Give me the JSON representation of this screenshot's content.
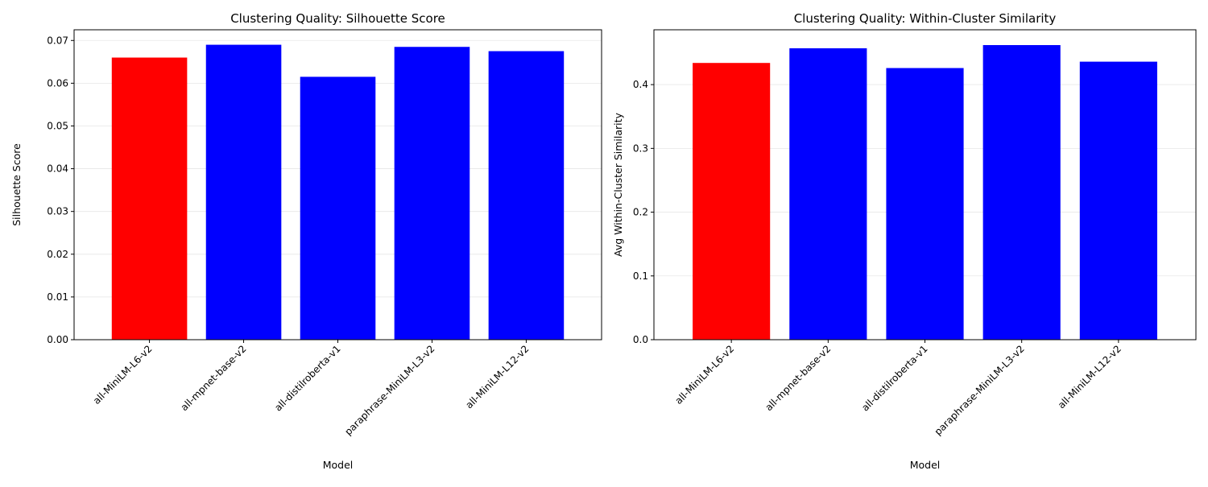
{
  "colors": {
    "highlight": "#ff0000",
    "bar": "#0000ff",
    "grid": "#e6e6e6",
    "axis": "#000000"
  },
  "chart_data": [
    {
      "type": "bar",
      "title": "Clustering Quality: Silhouette Score",
      "xlabel": "Model",
      "ylabel": "Silhouette Score",
      "categories": [
        "all-MiniLM-L6-v2",
        "all-mpnet-base-v2",
        "all-distilroberta-v1",
        "paraphrase-MiniLM-L3-v2",
        "all-MiniLM-L12-v2"
      ],
      "values": [
        0.066,
        0.069,
        0.0615,
        0.0685,
        0.0675
      ],
      "bar_colors": [
        "#ff0000",
        "#0000ff",
        "#0000ff",
        "#0000ff",
        "#0000ff"
      ],
      "ylim": [
        0,
        0.0725
      ],
      "yticks": [
        0.0,
        0.01,
        0.02,
        0.03,
        0.04,
        0.05,
        0.06,
        0.07
      ],
      "ytick_labels": [
        "0.00",
        "0.01",
        "0.02",
        "0.03",
        "0.04",
        "0.05",
        "0.06",
        "0.07"
      ],
      "grid": "y",
      "legend": "none"
    },
    {
      "type": "bar",
      "title": "Clustering Quality: Within-Cluster Similarity",
      "xlabel": "Model",
      "ylabel": "Avg Within-Cluster Similarity",
      "categories": [
        "all-MiniLM-L6-v2",
        "all-mpnet-base-v2",
        "all-distilroberta-v1",
        "paraphrase-MiniLM-L3-v2",
        "all-MiniLM-L12-v2"
      ],
      "values": [
        0.434,
        0.457,
        0.426,
        0.462,
        0.436
      ],
      "bar_colors": [
        "#ff0000",
        "#0000ff",
        "#0000ff",
        "#0000ff",
        "#0000ff"
      ],
      "ylim": [
        0,
        0.486
      ],
      "yticks": [
        0.0,
        0.1,
        0.2,
        0.3,
        0.4
      ],
      "ytick_labels": [
        "0.0",
        "0.1",
        "0.2",
        "0.3",
        "0.4"
      ],
      "grid": "y",
      "legend": "none"
    }
  ]
}
